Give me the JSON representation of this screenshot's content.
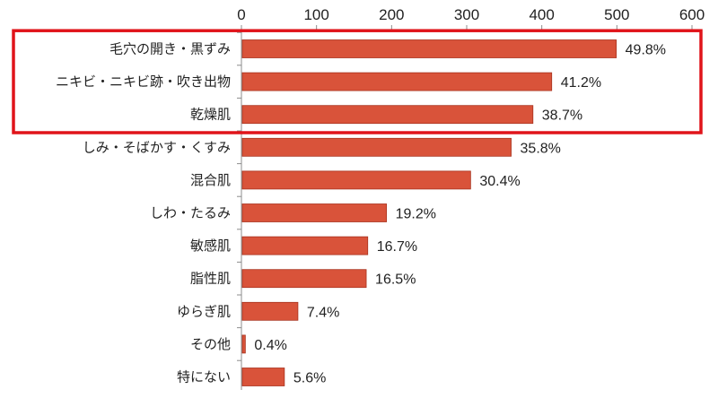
{
  "chart_data": {
    "type": "bar",
    "orientation": "horizontal",
    "categories": [
      "毛穴の開き・黒ずみ",
      "ニキビ・ニキビ跡・吹き出物",
      "乾燥肌",
      "しみ・そばかす・くすみ",
      "混合肌",
      "しわ・たるみ",
      "敏感肌",
      "脂性肌",
      "ゆらぎ肌",
      "その他",
      "特にない"
    ],
    "values": [
      498,
      412,
      387,
      358,
      304,
      192,
      167,
      165,
      74,
      4,
      56
    ],
    "data_labels": [
      "49.8%",
      "41.2%",
      "38.7%",
      "35.8%",
      "30.4%",
      "19.2%",
      "16.7%",
      "16.5%",
      "7.4%",
      "0.4%",
      "5.6%"
    ],
    "xlim": [
      0,
      600
    ],
    "x_ticks": [
      0,
      100,
      200,
      300,
      400,
      500,
      600
    ],
    "x_tick_labels": [
      "0",
      "100",
      "200",
      "300",
      "400",
      "500",
      "600"
    ],
    "x_axis_position": "top",
    "grid": false,
    "legend": "none",
    "highlight": {
      "categories": [
        "毛穴の開き・黒ずみ",
        "ニキビ・ニキビ跡・吹き出物",
        "乾燥肌"
      ],
      "style": "box",
      "color": "#e0141a"
    },
    "bar_color": "#d9533a",
    "bar_edge_color": "#a8321e",
    "axis_color": "#8c8c8c"
  }
}
